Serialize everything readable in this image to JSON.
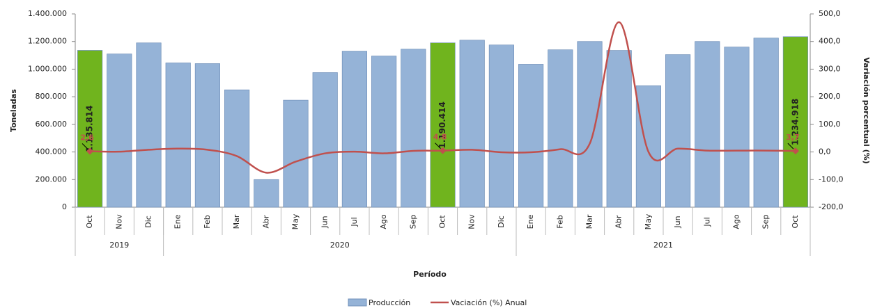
{
  "chart_data": {
    "type": "bar-line",
    "y_label": "Toneladas",
    "y2_label": "Variación porcentual (%)",
    "x_label": "Período",
    "categories": [
      "Oct",
      "Nov",
      "Dic",
      "Ene",
      "Feb",
      "Mar",
      "Abr",
      "May",
      "Jun",
      "Jul",
      "Ago",
      "Sep",
      "Oct",
      "Nov",
      "Dic",
      "Ene",
      "Feb",
      "Mar",
      "Abr",
      "May",
      "Jun",
      "Jul",
      "Ago",
      "Sep",
      "Oct"
    ],
    "year_groups": [
      {
        "name": "2019",
        "count": 3
      },
      {
        "name": "2020",
        "count": 12
      },
      {
        "name": "2021",
        "count": 10
      }
    ],
    "series": [
      {
        "name": "Producción",
        "type": "bar",
        "color": "#95b3d7",
        "colors": [
          "#70b41e",
          "#95b3d7",
          "#95b3d7",
          "#95b3d7",
          "#95b3d7",
          "#95b3d7",
          "#95b3d7",
          "#95b3d7",
          "#95b3d7",
          "#95b3d7",
          "#95b3d7",
          "#95b3d7",
          "#70b41e",
          "#95b3d7",
          "#95b3d7",
          "#95b3d7",
          "#95b3d7",
          "#95b3d7",
          "#95b3d7",
          "#95b3d7",
          "#95b3d7",
          "#95b3d7",
          "#95b3d7",
          "#95b3d7",
          "#70b41e"
        ],
        "values": [
          1135814,
          1110000,
          1190000,
          1045000,
          1040000,
          850000,
          200000,
          775000,
          975000,
          1130000,
          1095000,
          1145000,
          1190414,
          1210000,
          1175000,
          1035000,
          1140000,
          1200000,
          1135000,
          880000,
          1105000,
          1200000,
          1160000,
          1225000,
          1234918
        ],
        "value_labels": [
          "1.135.814",
          null,
          null,
          null,
          null,
          null,
          null,
          null,
          null,
          null,
          null,
          null,
          "1.190.414",
          null,
          null,
          null,
          null,
          null,
          null,
          null,
          null,
          null,
          null,
          null,
          "1.234.918"
        ]
      },
      {
        "name": "Vaciación (%) Anual",
        "type": "line",
        "axis": "y2",
        "color": "#c0504d",
        "values": [
          2.6,
          1,
          8,
          12,
          8,
          -15,
          -75,
          -35,
          -5,
          1,
          -5,
          4,
          4.8,
          8,
          -1,
          -1,
          10,
          30,
          470,
          0,
          12,
          5,
          5,
          5,
          3.7
        ],
        "value_labels": [
          "2,6",
          null,
          null,
          null,
          null,
          null,
          null,
          null,
          null,
          null,
          null,
          null,
          "4,8",
          null,
          null,
          null,
          null,
          null,
          null,
          null,
          null,
          null,
          null,
          null,
          "3,7"
        ]
      }
    ],
    "ylim": [
      0,
      1400000
    ],
    "yticks": [
      0,
      {
        "value": 200000,
        "label": "200.000"
      },
      {
        "value": 400000,
        "label": "400.000"
      },
      {
        "value": 600000,
        "label": "600.000"
      },
      {
        "value": 800000,
        "label": "800.000"
      },
      {
        "value": 1000000,
        "label": "1.000.000"
      },
      {
        "value": 1200000,
        "label": "1.200.000"
      },
      {
        "value": 1400000,
        "label": "1.400.000"
      }
    ],
    "y2lim": [
      -200,
      500
    ],
    "y2ticks": [
      {
        "value": -200,
        "label": "-200,0"
      },
      {
        "value": -100,
        "label": "-100,0"
      },
      {
        "value": 0,
        "label": "0,0"
      },
      {
        "value": 100,
        "label": "100,0"
      },
      {
        "value": 200,
        "label": "200,0"
      },
      {
        "value": 300,
        "label": "300,0"
      },
      {
        "value": 400,
        "label": "400,0"
      },
      {
        "value": 500,
        "label": "500,0"
      }
    ],
    "legend": "bottom"
  }
}
